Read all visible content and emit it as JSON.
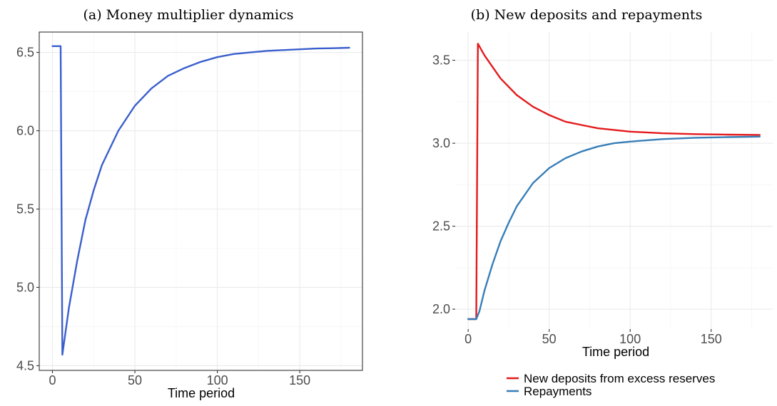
{
  "chart_data": [
    {
      "type": "line",
      "title": "(a) Money multiplier dynamics",
      "xlabel": "Time period",
      "ylabel": "",
      "xlim": [
        -8,
        188
      ],
      "ylim": [
        4.47,
        6.63
      ],
      "x_ticks": [
        0,
        50,
        100,
        150
      ],
      "y_ticks": [
        4.5,
        5.0,
        5.5,
        6.0,
        6.5
      ],
      "y_tick_labels": [
        "4.5",
        "5.0",
        "5.5",
        "6.0",
        "6.5"
      ],
      "grid": true,
      "border": true,
      "series": [
        {
          "name": "",
          "color": "#3a5fcd",
          "x": [
            0,
            5,
            6,
            10,
            15,
            20,
            25,
            30,
            40,
            50,
            60,
            70,
            80,
            90,
            100,
            110,
            120,
            130,
            140,
            150,
            160,
            170,
            180
          ],
          "y": [
            6.54,
            6.54,
            4.57,
            4.87,
            5.17,
            5.43,
            5.62,
            5.78,
            6.0,
            6.16,
            6.27,
            6.35,
            6.4,
            6.44,
            6.47,
            6.49,
            6.5,
            6.51,
            6.515,
            6.52,
            6.525,
            6.527,
            6.53
          ]
        }
      ]
    },
    {
      "type": "line",
      "title": "(b) New deposits and repayments",
      "xlabel": "Time period",
      "ylabel": "",
      "xlim": [
        -8,
        188
      ],
      "ylim": [
        1.88,
        3.67
      ],
      "x_ticks": [
        0,
        50,
        100,
        150
      ],
      "y_ticks": [
        2.0,
        2.5,
        3.0,
        3.5
      ],
      "y_tick_labels": [
        "2.0",
        "2.5",
        "3.0",
        "3.5"
      ],
      "grid": true,
      "border": false,
      "legend_position": "bottom",
      "series": [
        {
          "name": "New deposits from excess reserves",
          "color": "#e41a1c",
          "x": [
            0,
            5,
            6,
            10,
            20,
            30,
            40,
            50,
            60,
            70,
            80,
            90,
            100,
            120,
            140,
            160,
            180
          ],
          "y": [
            1.94,
            1.94,
            3.6,
            3.53,
            3.39,
            3.29,
            3.22,
            3.17,
            3.13,
            3.11,
            3.09,
            3.08,
            3.07,
            3.06,
            3.055,
            3.052,
            3.05
          ]
        },
        {
          "name": "Repayments",
          "color": "#377eb8",
          "x": [
            0,
            5,
            7,
            10,
            15,
            20,
            25,
            30,
            40,
            50,
            60,
            70,
            80,
            90,
            100,
            120,
            140,
            160,
            180
          ],
          "y": [
            1.94,
            1.94,
            1.99,
            2.11,
            2.27,
            2.41,
            2.52,
            2.62,
            2.76,
            2.85,
            2.91,
            2.95,
            2.98,
            3.0,
            3.01,
            3.025,
            3.033,
            3.037,
            3.04
          ]
        }
      ]
    }
  ]
}
